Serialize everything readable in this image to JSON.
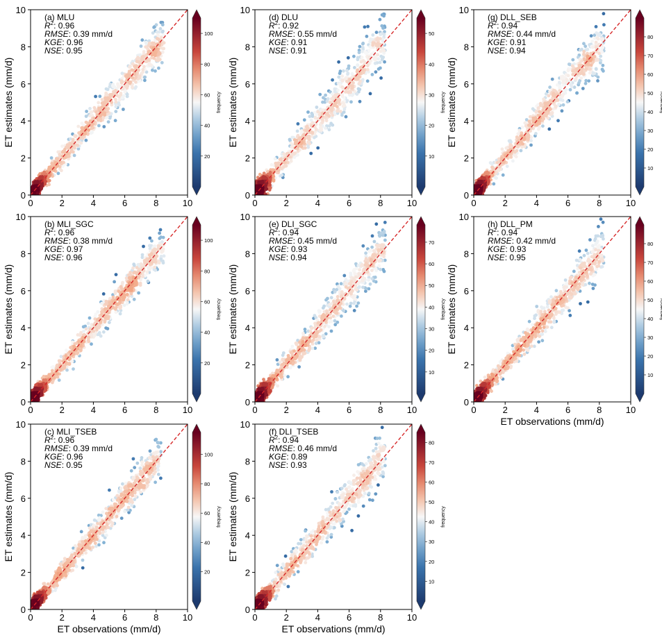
{
  "chart_data": [
    {
      "type": "scatter",
      "panel_label": "(a) MLU",
      "stats": {
        "r2": "0.96",
        "rmse": "0.39 mm/d",
        "kge": "0.96",
        "nse": "0.95"
      },
      "ylabel": "ET estimates (mm/d)",
      "xlabel": "",
      "xlim": [
        0,
        10
      ],
      "ylim": [
        0,
        10
      ],
      "ticks": [
        "0",
        "2",
        "4",
        "6",
        "8",
        "10"
      ],
      "colorbar": {
        "label": "frequency",
        "max": 110,
        "ticks": [
          "20",
          "40",
          "60",
          "80",
          "100"
        ]
      },
      "reference_line": "1:1",
      "points_summary": {
        "n_shown": 1300,
        "x_max": 8.5,
        "y_max": 8.6
      }
    },
    {
      "type": "scatter",
      "panel_label": "(b) MLI_SGC",
      "stats": {
        "r2": "0.96",
        "rmse": "0.38 mm/d",
        "kge": "0.97",
        "nse": "0.96"
      },
      "ylabel": "ET estimates (mm/d)",
      "xlabel": "",
      "xlim": [
        0,
        10
      ],
      "ylim": [
        0,
        10
      ],
      "ticks": [
        "0",
        "2",
        "4",
        "6",
        "8",
        "10"
      ],
      "colorbar": {
        "label": "frequency",
        "max": 110,
        "ticks": [
          "20",
          "40",
          "60",
          "80",
          "100"
        ]
      },
      "reference_line": "1:1",
      "points_summary": {
        "n_shown": 1300,
        "x_max": 8.5,
        "y_max": 8.6
      }
    },
    {
      "type": "scatter",
      "panel_label": "(c) MLI_TSEB",
      "stats": {
        "r2": "0.96",
        "rmse": "0.39 mm/d",
        "kge": "0.96",
        "nse": "0.95"
      },
      "ylabel": "ET estimates (mm/d)",
      "xlabel": "ET observations (mm/d)",
      "xlim": [
        0,
        10
      ],
      "ylim": [
        0,
        10
      ],
      "ticks": [
        "0",
        "2",
        "4",
        "6",
        "8",
        "10"
      ],
      "colorbar": {
        "label": "frequency",
        "max": 115,
        "ticks": [
          "20",
          "40",
          "60",
          "80",
          "100"
        ]
      },
      "reference_line": "1:1",
      "points_summary": {
        "n_shown": 1300,
        "x_max": 8.3,
        "y_max": 8.6
      }
    },
    {
      "type": "scatter",
      "panel_label": "(d) DLU",
      "stats": {
        "r2": "0.92",
        "rmse": "0.55 mm/d",
        "kge": "0.91",
        "nse": "0.91"
      },
      "ylabel": "ET estimates (mm/d)",
      "xlabel": "",
      "xlim": [
        0,
        10
      ],
      "ylim": [
        0,
        10
      ],
      "ticks": [
        "0",
        "2",
        "4",
        "6",
        "8",
        "10"
      ],
      "colorbar": {
        "label": "frequency",
        "max": 55,
        "ticks": [
          "10",
          "20",
          "30",
          "40",
          "50"
        ]
      },
      "reference_line": "1:1",
      "points_summary": {
        "n_shown": 1300,
        "x_max": 8.3,
        "y_max": 8.0
      }
    },
    {
      "type": "scatter",
      "panel_label": "(e) DLI_SGC",
      "stats": {
        "r2": "0.94",
        "rmse": "0.45 mm/d",
        "kge": "0.93",
        "nse": "0.94"
      },
      "ylabel": "ET estimates (mm/d)",
      "xlabel": "",
      "xlim": [
        0,
        10
      ],
      "ylim": [
        0,
        10
      ],
      "ticks": [
        "0",
        "2",
        "4",
        "6",
        "8",
        "10"
      ],
      "colorbar": {
        "label": "frequency",
        "max": 78,
        "ticks": [
          "10",
          "20",
          "30",
          "40",
          "50",
          "60",
          "70"
        ]
      },
      "reference_line": "1:1",
      "points_summary": {
        "n_shown": 1300,
        "x_max": 8.3,
        "y_max": 8.0
      }
    },
    {
      "type": "scatter",
      "panel_label": "(f) DLI_TSEB",
      "stats": {
        "r2": "0.94",
        "rmse": "0.46 mm/d",
        "kge": "0.89",
        "nse": "0.93"
      },
      "ylabel": "ET estimates (mm/d)",
      "xlabel": "ET observations (mm/d)",
      "xlim": [
        0,
        10
      ],
      "ylim": [
        0,
        10
      ],
      "ticks": [
        "0",
        "2",
        "4",
        "6",
        "8",
        "10"
      ],
      "colorbar": {
        "label": "frequency",
        "max": 85,
        "ticks": [
          "10",
          "20",
          "30",
          "40",
          "50",
          "60",
          "70",
          "80"
        ]
      },
      "reference_line": "1:1",
      "points_summary": {
        "n_shown": 1300,
        "x_max": 8.3,
        "y_max": 7.8
      }
    },
    {
      "type": "scatter",
      "panel_label": "(g) DLL_SEB",
      "stats": {
        "r2": "0.94",
        "rmse": "0.44 mm/d",
        "kge": "0.91",
        "nse": "0.94"
      },
      "ylabel": "ET estimates (mm/d)",
      "xlabel": "",
      "xlim": [
        0,
        10
      ],
      "ylim": [
        0,
        10
      ],
      "ticks": [
        "0",
        "2",
        "4",
        "6",
        "8",
        "10"
      ],
      "colorbar": {
        "label": "frequency",
        "max": 90,
        "ticks": [
          "10",
          "20",
          "30",
          "40",
          "50",
          "60",
          "70",
          "80"
        ]
      },
      "reference_line": "1:1",
      "points_summary": {
        "n_shown": 1300,
        "x_max": 8.3,
        "y_max": 8.0
      }
    },
    {
      "type": "scatter",
      "panel_label": "(h) DLL_PM",
      "stats": {
        "r2": "0.94",
        "rmse": "0.42 mm/d",
        "kge": "0.93",
        "nse": "0.95"
      },
      "ylabel": "ET estimates (mm/d)",
      "xlabel": "ET observations (mm/d)",
      "xlim": [
        0,
        10
      ],
      "ylim": [
        0,
        10
      ],
      "ticks": [
        "0",
        "2",
        "4",
        "6",
        "8",
        "10"
      ],
      "colorbar": {
        "label": "frequency",
        "max": 90,
        "ticks": [
          "10",
          "20",
          "30",
          "40",
          "50",
          "60",
          "70",
          "80"
        ]
      },
      "reference_line": "1:1",
      "points_summary": {
        "n_shown": 1300,
        "x_max": 8.3,
        "y_max": 8.3
      }
    }
  ],
  "stat_labels": {
    "r2": "R",
    "r2_sup": "2",
    "rmse": "RMSE",
    "kge": "KGE",
    "nse": "NSE"
  },
  "colors": {
    "low": "#1f3d6b",
    "mid": "#f7f7f7",
    "high": "#6b0d1e",
    "ref_line": "#d62728"
  }
}
